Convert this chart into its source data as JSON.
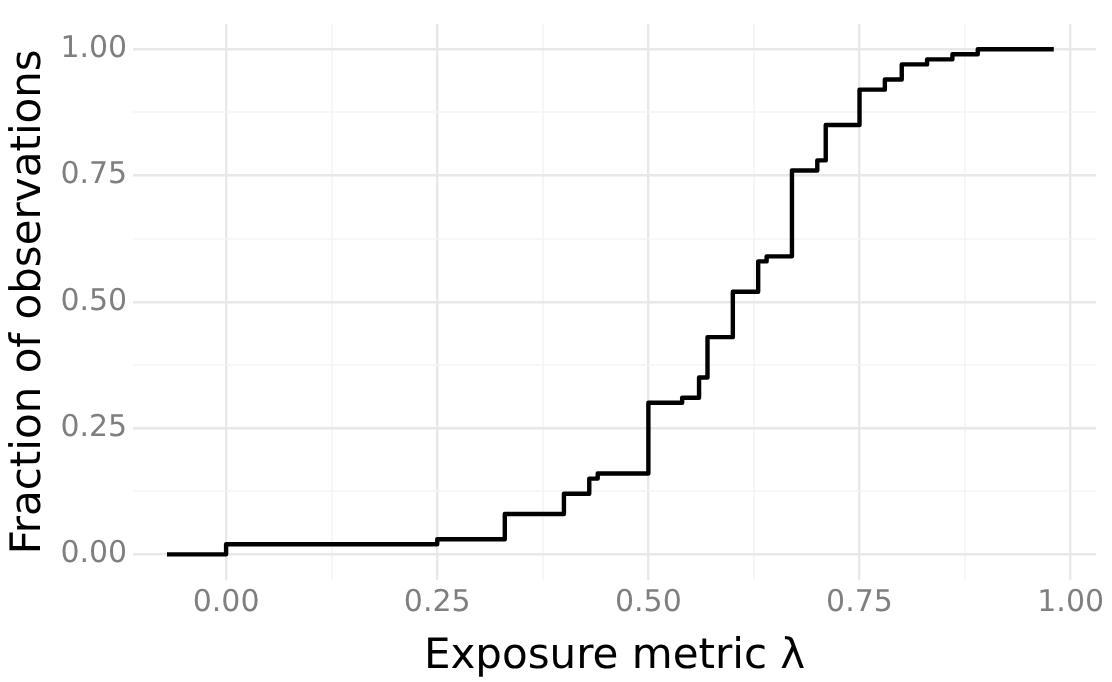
{
  "chart_data": {
    "type": "step",
    "xlabel": "Exposure metric λ",
    "ylabel": "Fraction of observations",
    "x": [
      -0.07,
      0.0,
      0.2,
      0.25,
      0.29,
      0.33,
      0.37,
      0.4,
      0.43,
      0.44,
      0.5,
      0.54,
      0.56,
      0.57,
      0.6,
      0.63,
      0.64,
      0.67,
      0.7,
      0.71,
      0.75,
      0.78,
      0.8,
      0.83,
      0.86,
      0.89,
      0.91,
      0.98
    ],
    "values": [
      0.0,
      0.02,
      0.02,
      0.03,
      0.03,
      0.08,
      0.08,
      0.12,
      0.15,
      0.16,
      0.3,
      0.31,
      0.35,
      0.43,
      0.52,
      0.58,
      0.59,
      0.76,
      0.78,
      0.85,
      0.92,
      0.94,
      0.97,
      0.98,
      0.99,
      1.0,
      1.0,
      1.0
    ],
    "color": "#000000",
    "line_style": "solid",
    "marker": "none",
    "xlim": [
      -0.11,
      1.03
    ],
    "ylim": [
      -0.05,
      1.05
    ],
    "xticks": [
      {
        "value": 0,
        "label": "0.00"
      },
      {
        "value": 0.125,
        "label": null
      },
      {
        "value": 0.25,
        "label": "0.25"
      },
      {
        "value": 0.375,
        "label": null
      },
      {
        "value": 0.5,
        "label": "0.50"
      },
      {
        "value": 0.625,
        "label": null
      },
      {
        "value": 0.75,
        "label": "0.75"
      },
      {
        "value": 0.875,
        "label": null
      },
      {
        "value": 1,
        "label": "1.00"
      }
    ],
    "yticks": [
      {
        "value": 0,
        "label": "0.00"
      },
      {
        "value": 0.125,
        "label": null
      },
      {
        "value": 0.25,
        "label": "0.25"
      },
      {
        "value": 0.375,
        "label": null
      },
      {
        "value": 0.5,
        "label": "0.50"
      },
      {
        "value": 0.625,
        "label": null
      },
      {
        "value": 0.75,
        "label": "0.75"
      },
      {
        "value": 0.875,
        "label": null
      },
      {
        "value": 1,
        "label": "1.00"
      }
    ],
    "grid": true,
    "legend": false
  }
}
